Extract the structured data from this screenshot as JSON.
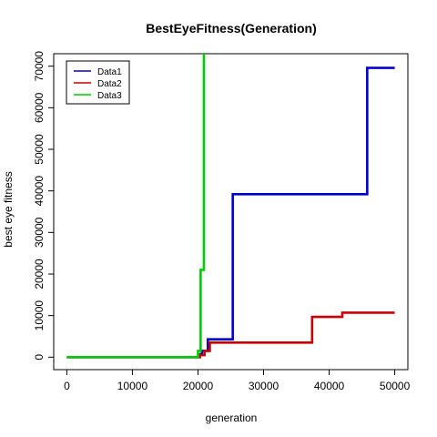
{
  "chart_data": {
    "type": "line",
    "title": "BestEyeFitness(Generation)",
    "xlabel": "generation",
    "ylabel": "best eye fitness",
    "xlim": [
      -2000,
      52000
    ],
    "ylim": [
      -3000,
      73000
    ],
    "xticks": [
      "0",
      "10000",
      "20000",
      "30000",
      "40000",
      "50000"
    ],
    "xtick_values": [
      0,
      10000,
      20000,
      30000,
      40000,
      50000
    ],
    "yticks": [
      "0",
      "10000",
      "20000",
      "30000",
      "40000",
      "50000",
      "60000",
      "70000"
    ],
    "ytick_values": [
      0,
      10000,
      20000,
      30000,
      40000,
      50000,
      60000,
      70000
    ],
    "legend_position": "top-left",
    "series": [
      {
        "name": "Data1",
        "color": "#0000cc",
        "x": [
          0,
          20200,
          20600,
          21500,
          25300,
          45800,
          50000
        ],
        "y": [
          0,
          700,
          1500,
          4300,
          39200,
          69600,
          69600
        ]
      },
      {
        "name": "Data2",
        "color": "#cc0000",
        "x": [
          0,
          20300,
          21000,
          21800,
          37400,
          42000,
          50000
        ],
        "y": [
          0,
          500,
          1500,
          3500,
          9700,
          10700,
          10700
        ]
      },
      {
        "name": "Data3",
        "color": "#00cc00",
        "x": [
          0,
          20000,
          20400,
          20900,
          21000
        ],
        "y": [
          0,
          1500,
          21000,
          73000,
          73000
        ]
      }
    ]
  }
}
